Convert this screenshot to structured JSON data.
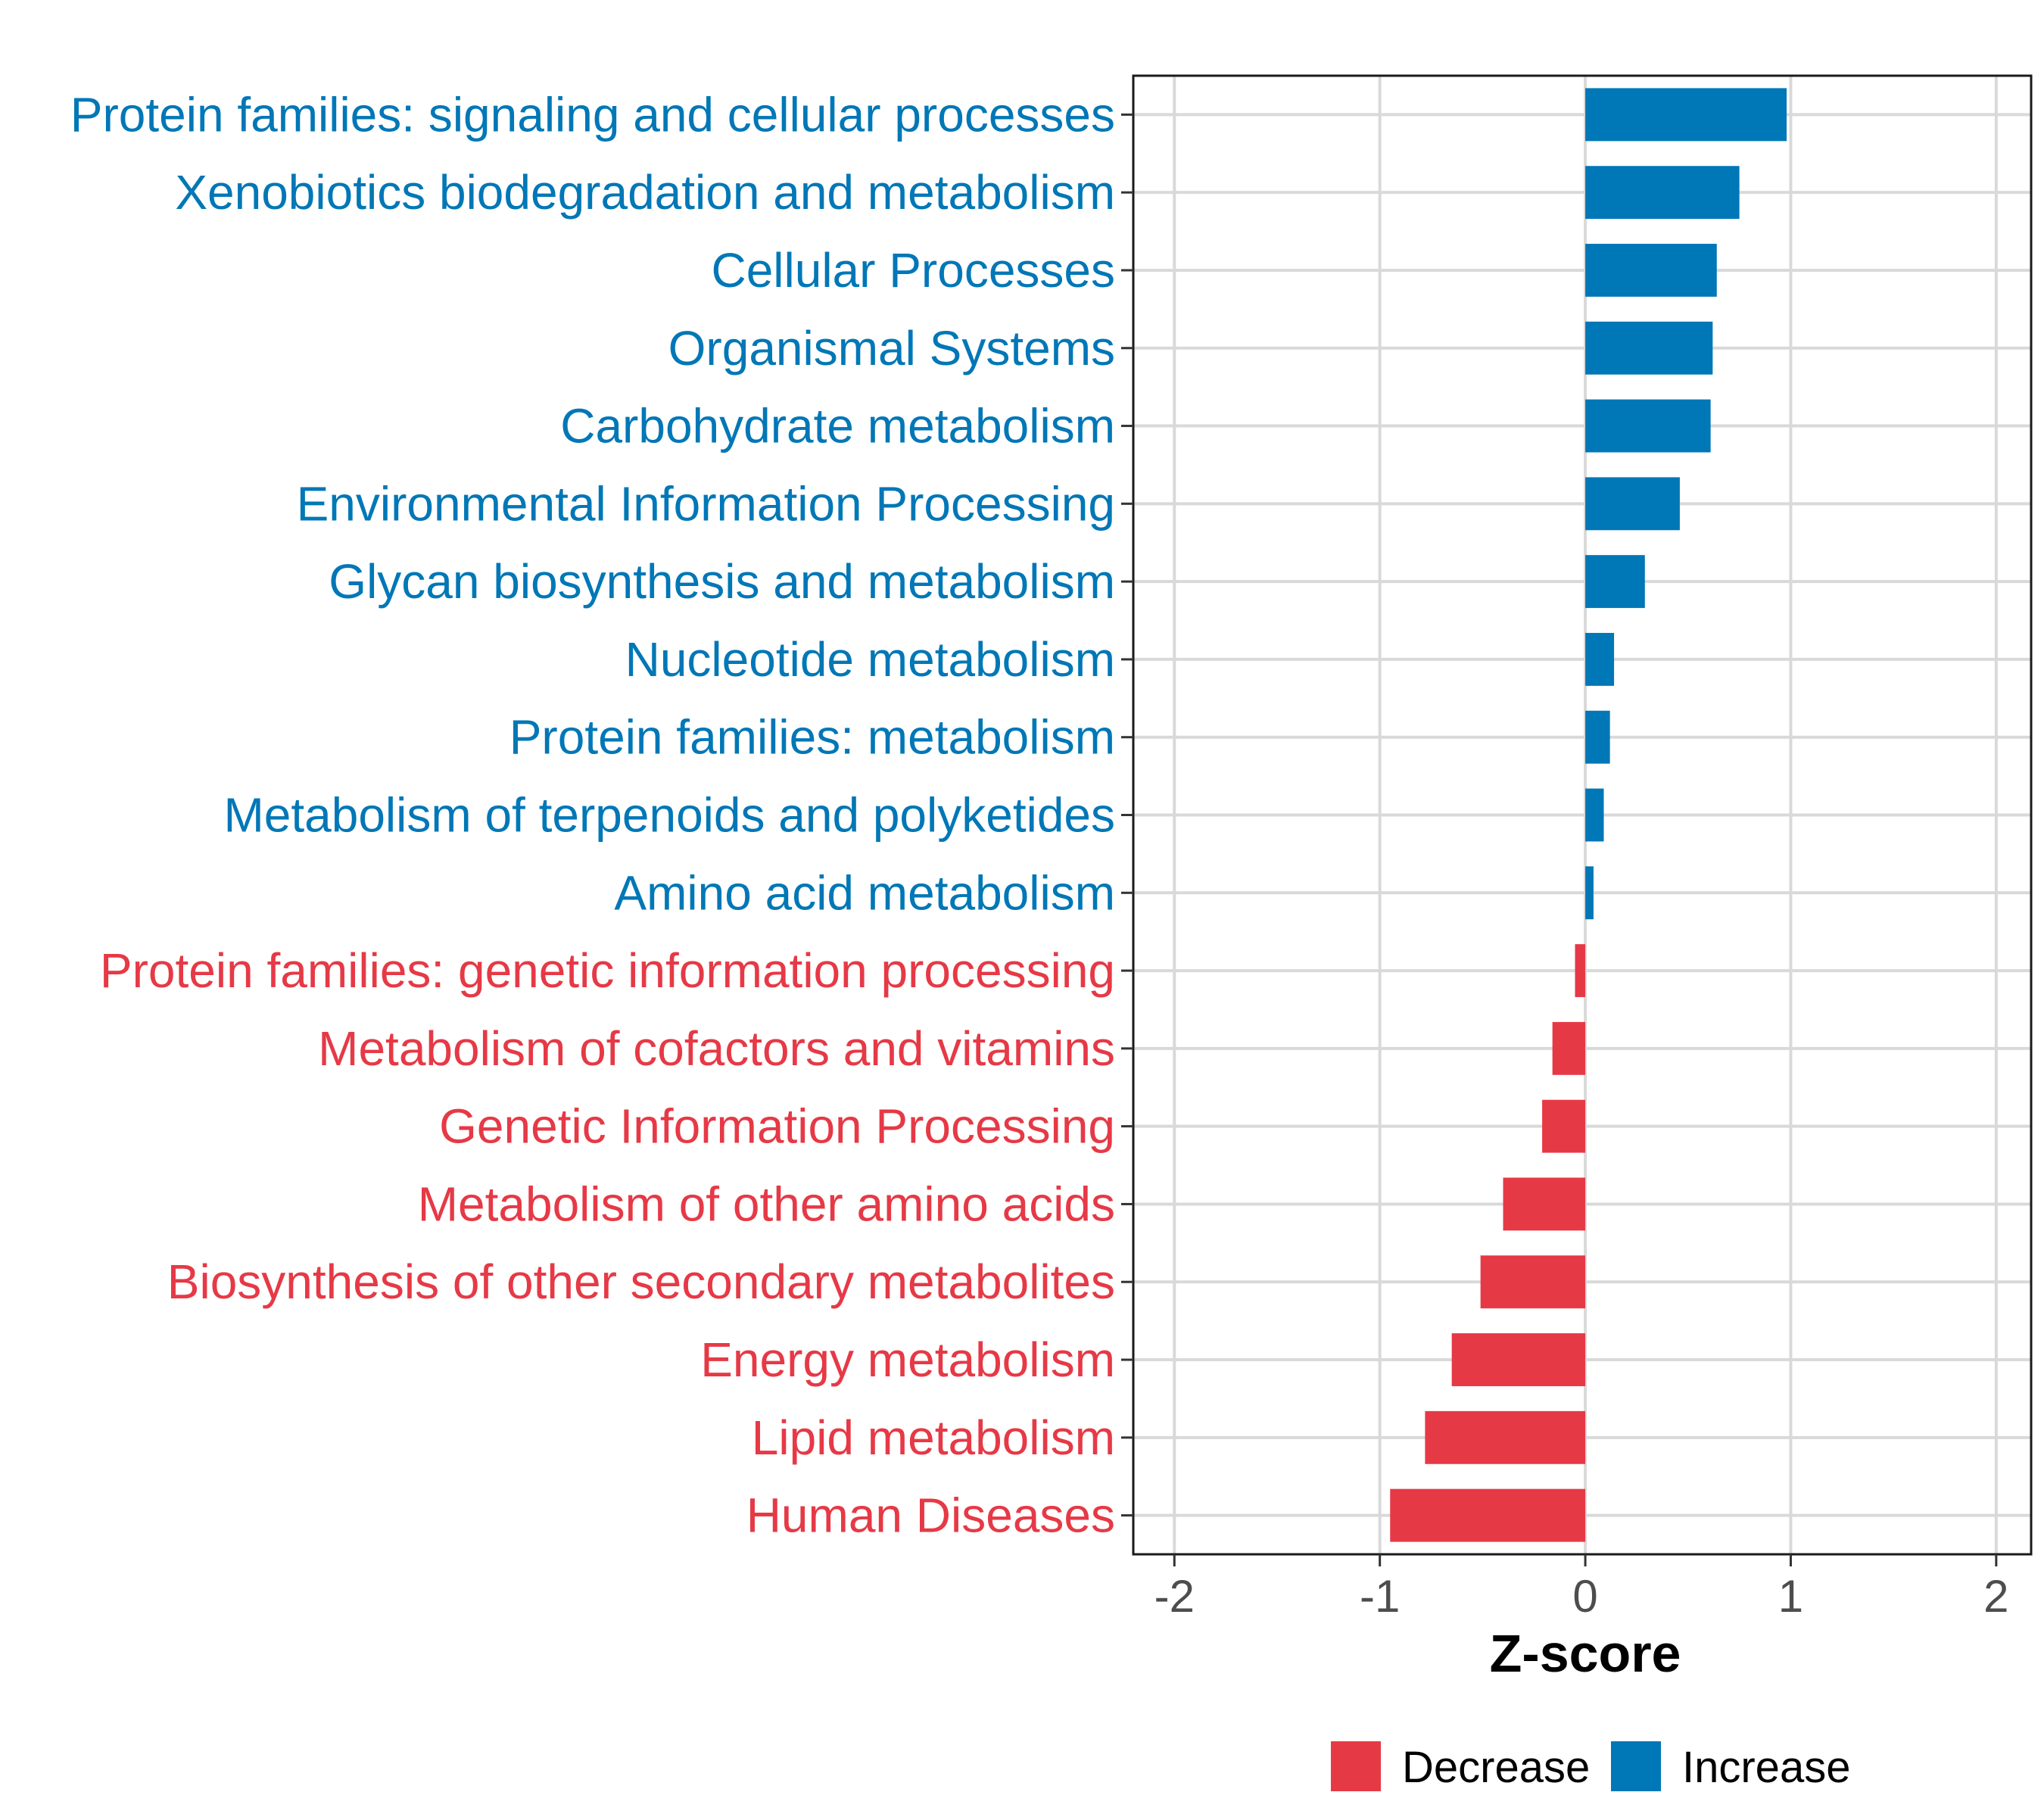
{
  "chart_data": {
    "type": "bar",
    "orientation": "horizontal",
    "title": "",
    "xlabel": "Z-score",
    "ylabel": "",
    "xlim": [
      -2.2,
      2.17
    ],
    "xticks": [
      -2,
      -1,
      0,
      1,
      2
    ],
    "grid": true,
    "legend_position": "bottom",
    "colors": {
      "Decrease": "#E63946",
      "Increase": "#0077B6"
    },
    "legend": [
      {
        "label": "Decrease",
        "color": "#E63946"
      },
      {
        "label": "Increase",
        "color": "#0077B6"
      }
    ],
    "categories": [
      "Protein families: signaling and cellular processes",
      "Xenobiotics biodegradation and metabolism",
      "Cellular Processes",
      "Organismal Systems",
      "Carbohydrate metabolism",
      "Environmental Information Processing",
      "Glycan biosynthesis and metabolism",
      "Nucleotide metabolism",
      "Protein families: metabolism",
      "Metabolism of terpenoids and polyketides",
      "Amino acid metabolism",
      "Protein families: genetic information processing",
      "Metabolism of cofactors and vitamins",
      "Genetic Information Processing",
      "Metabolism of other amino acids",
      "Biosynthesis of other secondary metabolites",
      "Energy metabolism",
      "Lipid metabolism",
      "Human Diseases"
    ],
    "values": [
      0.98,
      0.75,
      0.64,
      0.62,
      0.61,
      0.46,
      0.29,
      0.14,
      0.12,
      0.09,
      0.04,
      -0.05,
      -0.16,
      -0.21,
      -0.4,
      -0.51,
      -0.65,
      -0.78,
      -0.95
    ],
    "groups": [
      "Increase",
      "Increase",
      "Increase",
      "Increase",
      "Increase",
      "Increase",
      "Increase",
      "Increase",
      "Increase",
      "Increase",
      "Increase",
      "Decrease",
      "Decrease",
      "Decrease",
      "Decrease",
      "Decrease",
      "Decrease",
      "Decrease",
      "Decrease"
    ]
  }
}
